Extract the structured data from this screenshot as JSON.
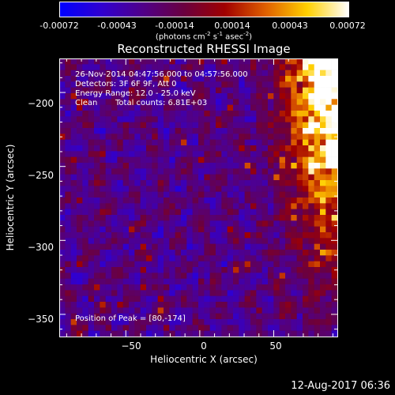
{
  "colorbar": {
    "ticks": [
      "-0.00072",
      "-0.00043",
      "-0.00014",
      "0.00014",
      "0.00043",
      "0.00072"
    ],
    "units_main": "(photons cm",
    "units_sup1": "-2",
    "units_mid1": " s",
    "units_sup2": "-1",
    "units_mid2": " asec",
    "units_sup3": "-2",
    "units_end": ")",
    "colors": [
      "#0000ff",
      "#3000d0",
      "#50008a",
      "#6a0040",
      "#a00000",
      "#e06000",
      "#ffd000",
      "#ffffff"
    ]
  },
  "chart_data": {
    "type": "heatmap",
    "title": "Reconstructed RHESSI Image",
    "xlabel": "Heliocentric X (arcsec)",
    "ylabel": "Heliocentric Y (arcsec)",
    "xlim": [
      -95,
      93
    ],
    "ylim": [
      -365,
      -177
    ],
    "xticks": [
      -50,
      0,
      50
    ],
    "xtick_labels": [
      "−50",
      "0",
      "50"
    ],
    "yticks": [
      -200,
      -250,
      -300,
      -350
    ],
    "ytick_labels": [
      "−200",
      "−250",
      "−300",
      "−350"
    ],
    "value_range": [
      -0.00072,
      0.00072
    ],
    "peak_position": [
      80,
      -174
    ],
    "annotations": {
      "line1": "26-Nov-2014 04:47:56.000 to 04:57:56.000",
      "line2": "Detectors: 3F 6F 9F, Att 0",
      "line3": "Energy Range: 12.0 - 25.0 keV",
      "line4a": "Clean",
      "line4b": "Total counts: 6.81E+03",
      "peak": "Position of Peak = [80,-174]"
    }
  },
  "footer": {
    "timestamp": "12-Aug-2017 06:36"
  }
}
